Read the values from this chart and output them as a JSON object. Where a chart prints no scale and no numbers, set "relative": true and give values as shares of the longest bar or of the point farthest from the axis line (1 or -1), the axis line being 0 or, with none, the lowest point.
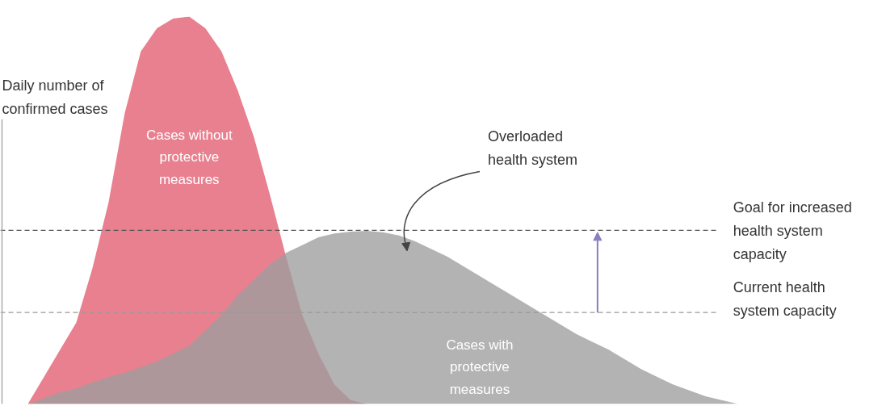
{
  "chart_data": {
    "type": "area",
    "relative": true,
    "ylabel": "Daily number of\nconfirmed cases",
    "categories": [
      null,
      null,
      null,
      null,
      null,
      null,
      null,
      null,
      null,
      null,
      null,
      null,
      null,
      null,
      null,
      null,
      null,
      null,
      null,
      null,
      null,
      null,
      null,
      null,
      null,
      null,
      null,
      null,
      null,
      null,
      null,
      null,
      null,
      null,
      null,
      null,
      null,
      null,
      null,
      null,
      null,
      null,
      null,
      null,
      null
    ],
    "series": [
      {
        "name": "Cases without\nprotective\nmeasures",
        "color": "#e8808f",
        "values": [
          0,
          0.07,
          0.14,
          0.21,
          0.35,
          0.52,
          0.75,
          0.91,
          0.97,
          0.995,
          1.0,
          0.97,
          0.91,
          0.81,
          0.69,
          0.54,
          0.38,
          0.23,
          0.13,
          0.05,
          0.01,
          0,
          null,
          null,
          null,
          null,
          null,
          null,
          null,
          null,
          null,
          null,
          null,
          null,
          null,
          null,
          null,
          null,
          null,
          null,
          null,
          null,
          null,
          null,
          null
        ]
      },
      {
        "name": "Cases with\nprotective\nmeasures",
        "color": "#9e9e9e",
        "values": [
          0,
          0.015,
          0.03,
          0.04,
          0.055,
          0.07,
          0.08,
          0.095,
          0.11,
          0.13,
          0.15,
          0.19,
          0.23,
          0.28,
          0.32,
          0.36,
          0.39,
          0.41,
          0.43,
          0.44,
          0.445,
          0.447,
          0.443,
          0.435,
          0.42,
          0.4,
          0.38,
          0.355,
          0.33,
          0.305,
          0.28,
          0.255,
          0.23,
          0.205,
          0.18,
          0.16,
          0.14,
          0.115,
          0.09,
          0.07,
          0.05,
          0.035,
          0.02,
          0.01,
          0
        ]
      }
    ],
    "ref_lines": [
      {
        "axis": "y",
        "value": 0.448,
        "label": "Goal for increased\nhealth system\ncapacity",
        "color": "#555555",
        "line_style": "dashed"
      },
      {
        "axis": "y",
        "value": 0.236,
        "label": "Current health\nsystem capacity",
        "color": "#999999",
        "line_style": "dashed"
      }
    ],
    "annotations": [
      "Overloaded\nhealth system"
    ],
    "grid": false
  }
}
